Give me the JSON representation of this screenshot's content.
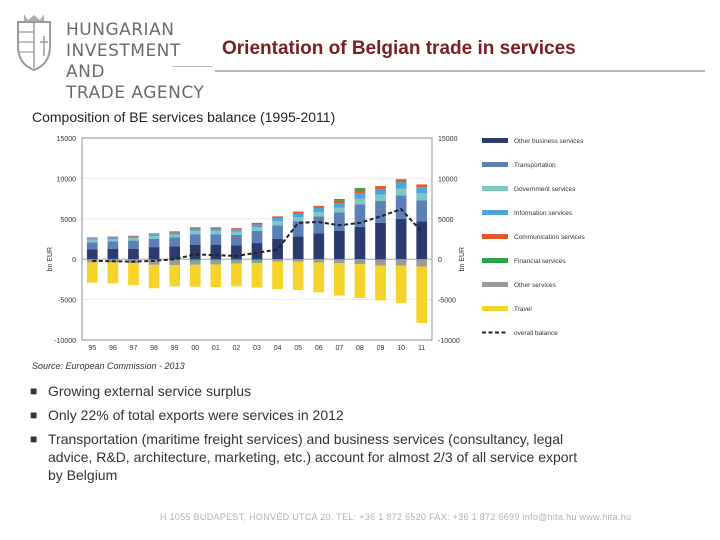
{
  "agency": {
    "line1": "HUNGARIAN",
    "line2": "INVESTMENT AND",
    "line3": "TRADE AGENCY"
  },
  "title": "Orientation of Belgian trade in services",
  "chart_caption": "Composition of BE services balance (1995-2011)",
  "source": "Source: European Commission - 2013",
  "bullets": [
    "Growing external service surplus",
    "Only 22% of total exports were services in 2012",
    "Transportation (maritime freight services) and business services (consultancy, legal advice, R&D, architecture, marketing, etc.) account for almost 2/3 of all service export by Belgium"
  ],
  "footer": "H 1055 BUDAPEST, HONVÉD UTCA 20. TEL: +36 1 872 6520 FAX: +36 1 872 6699 info@hita.hu www.hita.hu",
  "colors": {
    "title": "#7a1f1f",
    "other_business": "#2d3a6e",
    "transportation": "#5b7fb6",
    "government": "#7fc7c0",
    "information": "#4da3dc",
    "communication": "#e2572a",
    "financial": "#2aa54d",
    "other": "#9a9a9a",
    "travel": "#f6d32b",
    "balance": "#222222"
  },
  "chart_data": {
    "type": "bar",
    "stacked": true,
    "categories": [
      "95",
      "96",
      "97",
      "98",
      "99",
      "00",
      "01",
      "02",
      "03",
      "04",
      "05",
      "06",
      "07",
      "08",
      "09",
      "10",
      "11"
    ],
    "ylim": [
      -10000,
      15000
    ],
    "yticks": [
      -10000,
      -5000,
      0,
      5000,
      10000,
      15000
    ],
    "ytick_labels": [
      "-10000",
      "-5000",
      "0",
      "5000",
      "10000",
      "15000"
    ],
    "ylabel_left": "bn EUR",
    "ylabel_right": "bn EUR",
    "legend_position": "right",
    "series": [
      {
        "name": "Other business services",
        "key": "other_business",
        "values": [
          1200,
          1300,
          1300,
          1500,
          1600,
          1800,
          1800,
          1700,
          2000,
          2500,
          2800,
          3200,
          3500,
          4000,
          4500,
          5000,
          4700
        ]
      },
      {
        "name": "Transportation",
        "key": "transportation",
        "values": [
          900,
          900,
          1000,
          1000,
          1100,
          1300,
          1300,
          1300,
          1500,
          1700,
          1900,
          2100,
          2300,
          2800,
          2700,
          2900,
          2600
        ]
      },
      {
        "name": "Government services",
        "key": "government",
        "values": [
          300,
          300,
          300,
          350,
          350,
          400,
          400,
          400,
          450,
          500,
          500,
          550,
          600,
          700,
          800,
          850,
          850
        ]
      },
      {
        "name": "Information services",
        "key": "information",
        "values": [
          200,
          200,
          200,
          250,
          250,
          300,
          300,
          300,
          350,
          400,
          450,
          500,
          550,
          650,
          700,
          800,
          750
        ]
      },
      {
        "name": "Communication services",
        "key": "communication",
        "values": [
          100,
          100,
          100,
          100,
          150,
          150,
          150,
          150,
          200,
          200,
          250,
          250,
          300,
          350,
          350,
          350,
          350
        ]
      },
      {
        "name": "Financial services",
        "key": "financial",
        "values": [
          0,
          0,
          0,
          -100,
          -150,
          -200,
          -150,
          -150,
          -200,
          0,
          0,
          0,
          200,
          300,
          -100,
          0,
          0
        ]
      },
      {
        "name": "Other services",
        "key": "other",
        "values": [
          -400,
          -400,
          -500,
          -600,
          -600,
          -500,
          -500,
          -400,
          -300,
          -300,
          -300,
          -400,
          -500,
          -600,
          -700,
          -800,
          -900
        ]
      },
      {
        "name": "Travel",
        "key": "travel",
        "values": [
          -2500,
          -2600,
          -2700,
          -2900,
          -2600,
          -2700,
          -2800,
          -2800,
          -3000,
          -3400,
          -3500,
          -3700,
          -4000,
          -4200,
          -4300,
          -4600,
          -7000
        ]
      }
    ],
    "line_series": {
      "name": "overall balance",
      "key": "balance",
      "values": [
        -200,
        -250,
        -300,
        -200,
        0,
        600,
        500,
        400,
        800,
        1200,
        4500,
        4600,
        4200,
        4500,
        5300,
        6200,
        3400
      ]
    }
  }
}
